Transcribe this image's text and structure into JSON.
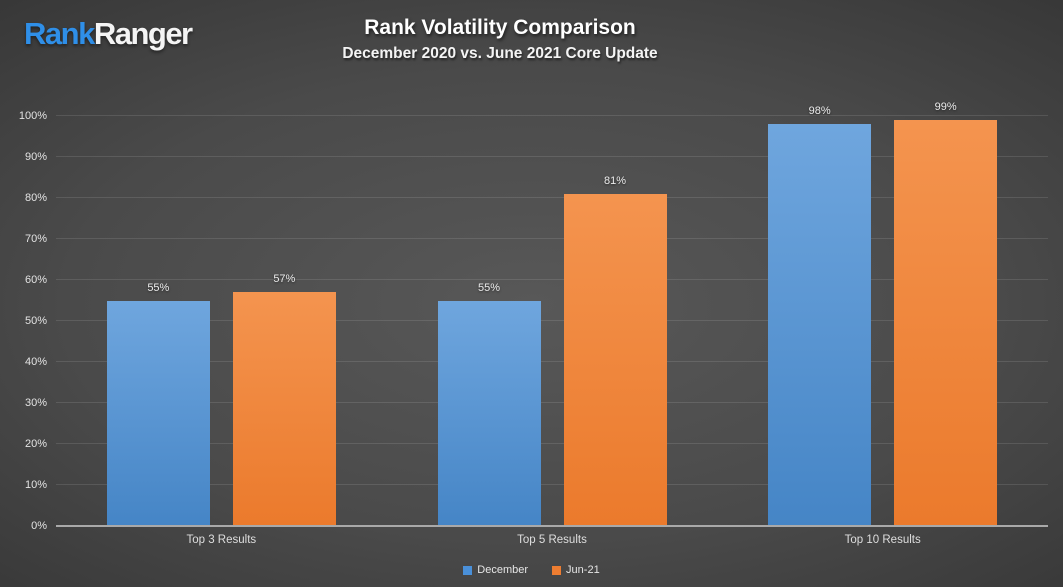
{
  "logo": {
    "part1": "Rank",
    "part2": "Ranger"
  },
  "header": {
    "title": "Rank Volatility Comparison",
    "subtitle": "December 2020 vs. June 2021 Core Update"
  },
  "chart_data": {
    "type": "bar",
    "title": "Rank Volatility Comparison",
    "subtitle": "December 2020 vs. June 2021 Core Update",
    "categories": [
      "Top 3 Results",
      "Top 5 Results",
      "Top 10 Results"
    ],
    "series": [
      {
        "name": "December",
        "color": "#4a90d9",
        "gradient": [
          "#6fa6de",
          "#4585c6"
        ],
        "values": [
          55,
          55,
          98
        ]
      },
      {
        "name": "Jun-21",
        "color": "#ed7d31",
        "gradient": [
          "#f4944f",
          "#eb7a2c"
        ],
        "values": [
          57,
          81,
          99
        ]
      }
    ],
    "value_suffix": "%",
    "data_labels": [
      "55%",
      "57%",
      "55%",
      "81%",
      "98%",
      "99%"
    ],
    "y_ticks": [
      0,
      10,
      20,
      30,
      40,
      50,
      60,
      70,
      80,
      90,
      100
    ],
    "ylim": [
      0,
      100
    ],
    "grid": true,
    "legend_position": "bottom"
  },
  "colors": {
    "background_center": "#585858",
    "background_edge": "#232323",
    "gridline": "rgba(255,255,255,0.11)",
    "axis_line": "#a9a9a9",
    "logo_blue": "#2f8fe8",
    "text": "#ececec"
  }
}
